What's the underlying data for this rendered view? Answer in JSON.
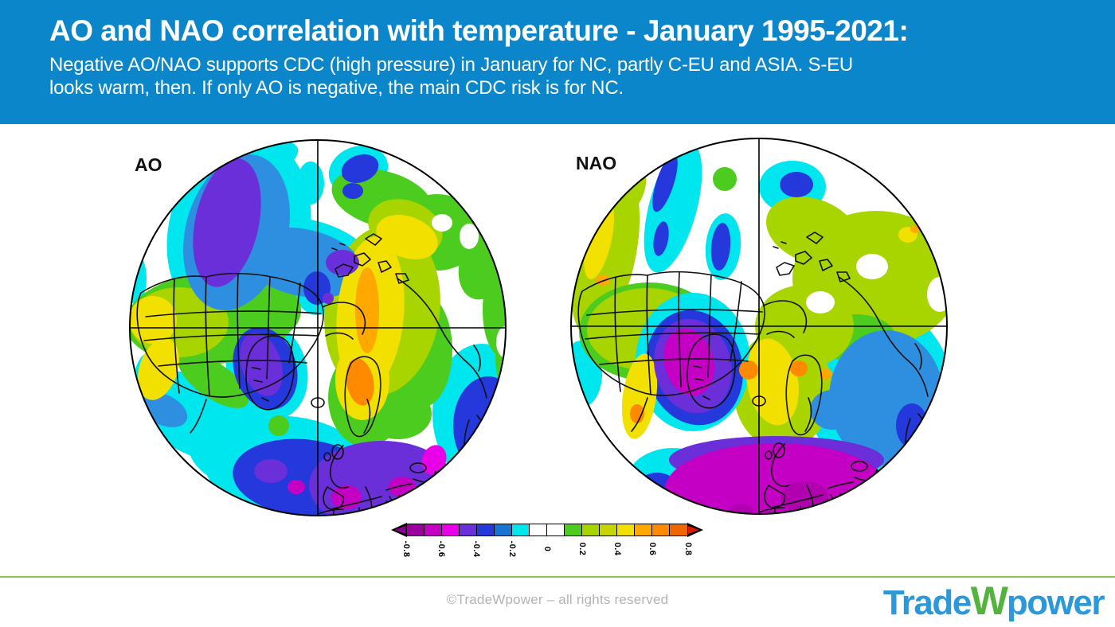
{
  "header": {
    "title": "AO and NAO correlation with temperature - January 1995-2021:",
    "subtitle": "Negative AO/NAO supports CDC (high pressure) in January for NC, partly C-EU and ASIA. S-EU\nlooks warm, then. If only AO is negative, the main CDC risk is for NC.",
    "background_color": "#0b86cb",
    "text_color": "#ffffff"
  },
  "maps": [
    {
      "label": "AO"
    },
    {
      "label": "NAO"
    }
  ],
  "colorbar": {
    "ticks": [
      "-0.8",
      "-0.6",
      "-0.4",
      "-0.2",
      "0",
      "0.2",
      "0.4",
      "0.6",
      "0.8"
    ],
    "value_range": [
      -0.8,
      0.8
    ],
    "segment_colors": [
      "#9c009c",
      "#c400c4",
      "#e800e8",
      "#6a2fd8",
      "#2438db",
      "#1873d2",
      "#00e6ee",
      "#ffffff",
      "#ffffff",
      "#4ccc1f",
      "#a8d400",
      "#c8d400",
      "#f2e000",
      "#ffa800",
      "#ff8a00",
      "#ee6600"
    ],
    "left_arrow_color": "#8a0090",
    "right_arrow_color": "#dd1a00"
  },
  "footer": {
    "copyright": "©TradeWpower – all rights reserved",
    "divider_color": "#8dc650",
    "logo": {
      "part1": "Trade",
      "part2": "W",
      "part3": "power",
      "blue": "#2b99d9",
      "green": "#52b43c"
    }
  }
}
